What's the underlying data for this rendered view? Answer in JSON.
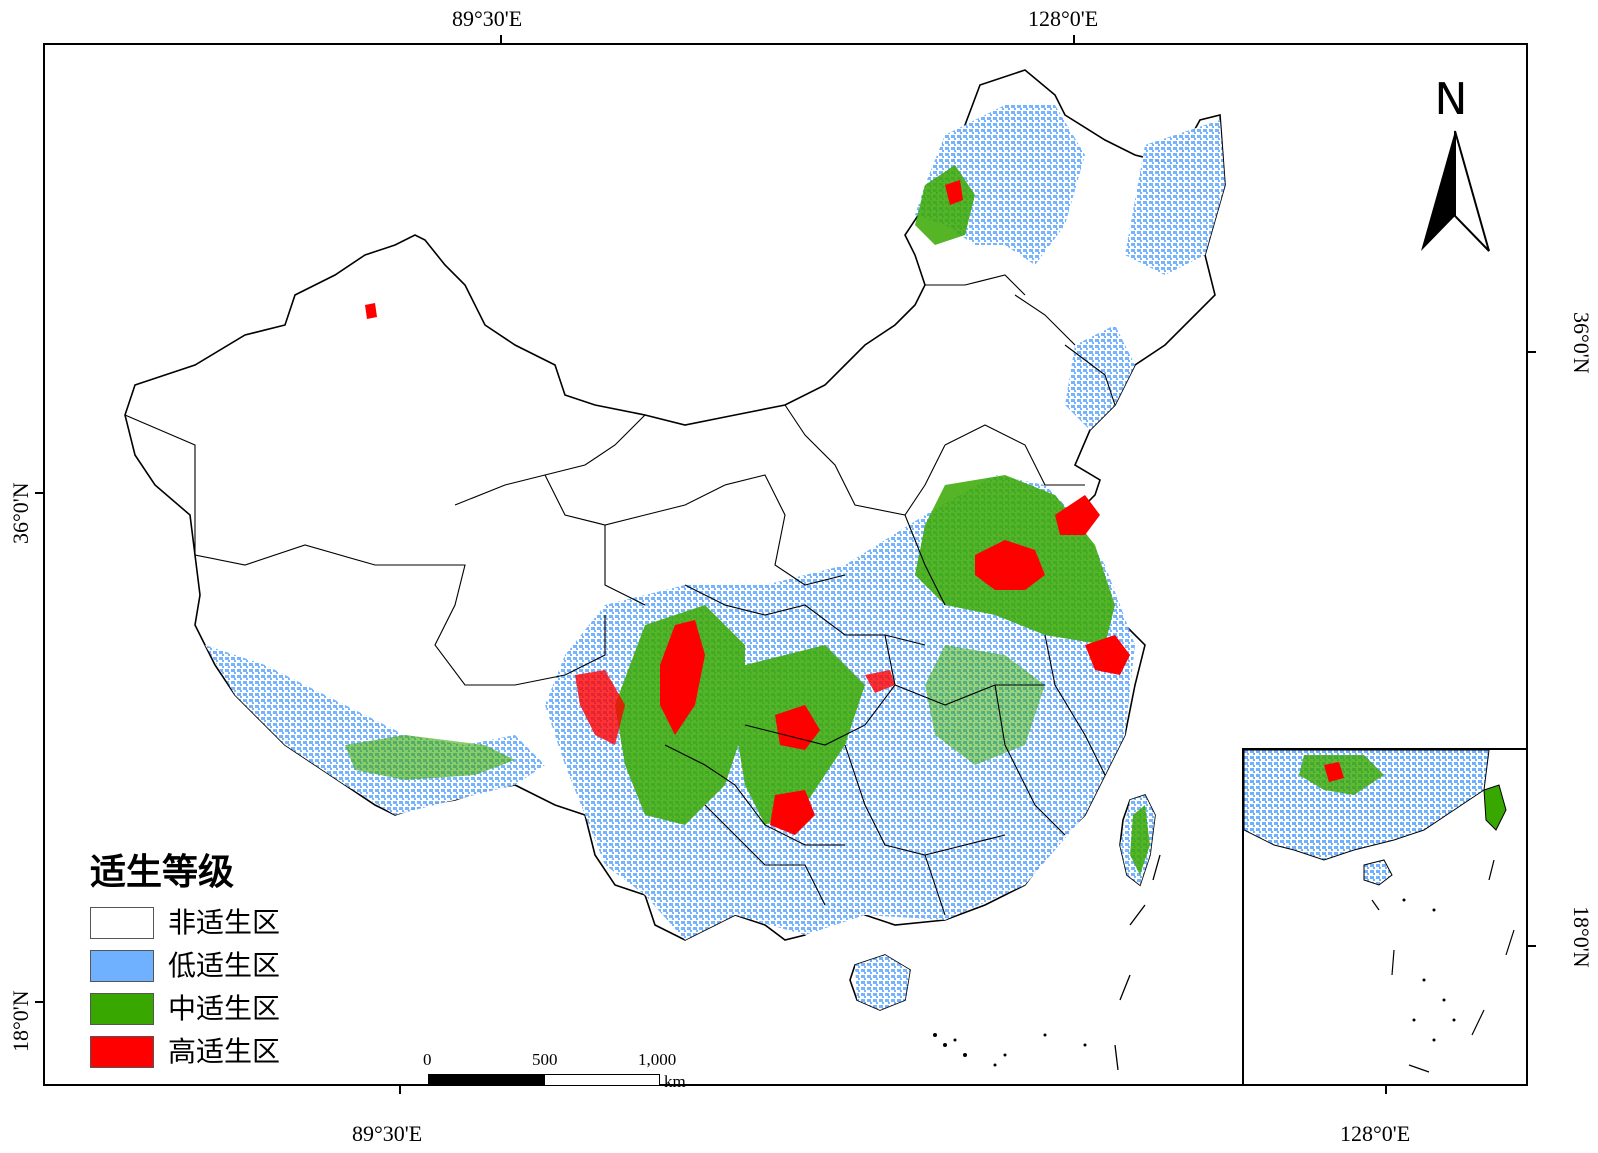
{
  "axes": {
    "top": [
      "89°30'E",
      "128°0'E"
    ],
    "bottom": [
      "89°30'E",
      "128°0'E"
    ],
    "left": [
      "36°0'N",
      "18°0'N"
    ],
    "right": [
      "36°0'N",
      "18°0'N"
    ]
  },
  "north_arrow": {
    "label": "N"
  },
  "legend": {
    "title": "适生等级",
    "items": [
      {
        "label": "非适生区",
        "color": "#ffffff"
      },
      {
        "label": "低适生区",
        "color": "#6fb0ff"
      },
      {
        "label": "中适生区",
        "color": "#38a800"
      },
      {
        "label": "高适生区",
        "color": "#ff0000"
      }
    ]
  },
  "scale_bar": {
    "ticks": [
      "0",
      "500",
      "1,000"
    ],
    "unit": "km"
  },
  "colors": {
    "frame": "#000000",
    "boundary": "#000000"
  }
}
